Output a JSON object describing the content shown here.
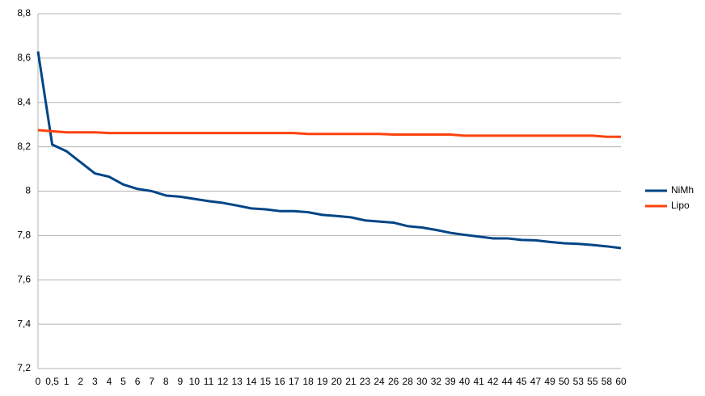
{
  "chart_data": {
    "type": "line",
    "categories": [
      "0",
      "0,5",
      "1",
      "2",
      "3",
      "4",
      "5",
      "6",
      "7",
      "8",
      "9",
      "10",
      "11",
      "12",
      "13",
      "14",
      "15",
      "16",
      "17",
      "18",
      "19",
      "20",
      "21",
      "23",
      "24",
      "26",
      "28",
      "30",
      "32",
      "39",
      "40",
      "41",
      "42",
      "44",
      "45",
      "47",
      "49",
      "50",
      "53",
      "55",
      "58",
      "60"
    ],
    "series": [
      {
        "name": "NiMh",
        "color": "#004586",
        "values": [
          8.63,
          8.21,
          8.18,
          8.13,
          8.08,
          8.065,
          8.03,
          8.01,
          8.0,
          7.98,
          7.975,
          7.965,
          7.955,
          7.947,
          7.935,
          7.922,
          7.918,
          7.91,
          7.91,
          7.905,
          7.893,
          7.888,
          7.882,
          7.868,
          7.863,
          7.858,
          7.842,
          7.836,
          7.825,
          7.812,
          7.803,
          7.795,
          7.787,
          7.787,
          7.78,
          7.778,
          7.771,
          7.765,
          7.762,
          7.757,
          7.751,
          7.743
        ]
      },
      {
        "name": "Lipo",
        "color": "#ff420e",
        "values": [
          8.275,
          8.27,
          8.265,
          8.265,
          8.265,
          8.262,
          8.262,
          8.262,
          8.262,
          8.262,
          8.262,
          8.262,
          8.262,
          8.262,
          8.262,
          8.262,
          8.262,
          8.262,
          8.262,
          8.258,
          8.258,
          8.258,
          8.258,
          8.258,
          8.258,
          8.255,
          8.255,
          8.255,
          8.255,
          8.255,
          8.25,
          8.25,
          8.25,
          8.25,
          8.25,
          8.25,
          8.25,
          8.25,
          8.25,
          8.25,
          8.245,
          8.245
        ]
      }
    ],
    "ylim": [
      7.2,
      8.8
    ],
    "yticks": [
      {
        "value": 7.2,
        "label": "7,2"
      },
      {
        "value": 7.4,
        "label": "7,4"
      },
      {
        "value": 7.6,
        "label": "7,6"
      },
      {
        "value": 7.8,
        "label": "7,8"
      },
      8,
      {
        "value": 8.2,
        "label": "8,2"
      },
      {
        "value": 8.4,
        "label": "8,4"
      },
      {
        "value": 8.6,
        "label": "8,6"
      },
      {
        "value": 8.8,
        "label": "8,8"
      }
    ],
    "grid": true,
    "legend": "right"
  }
}
